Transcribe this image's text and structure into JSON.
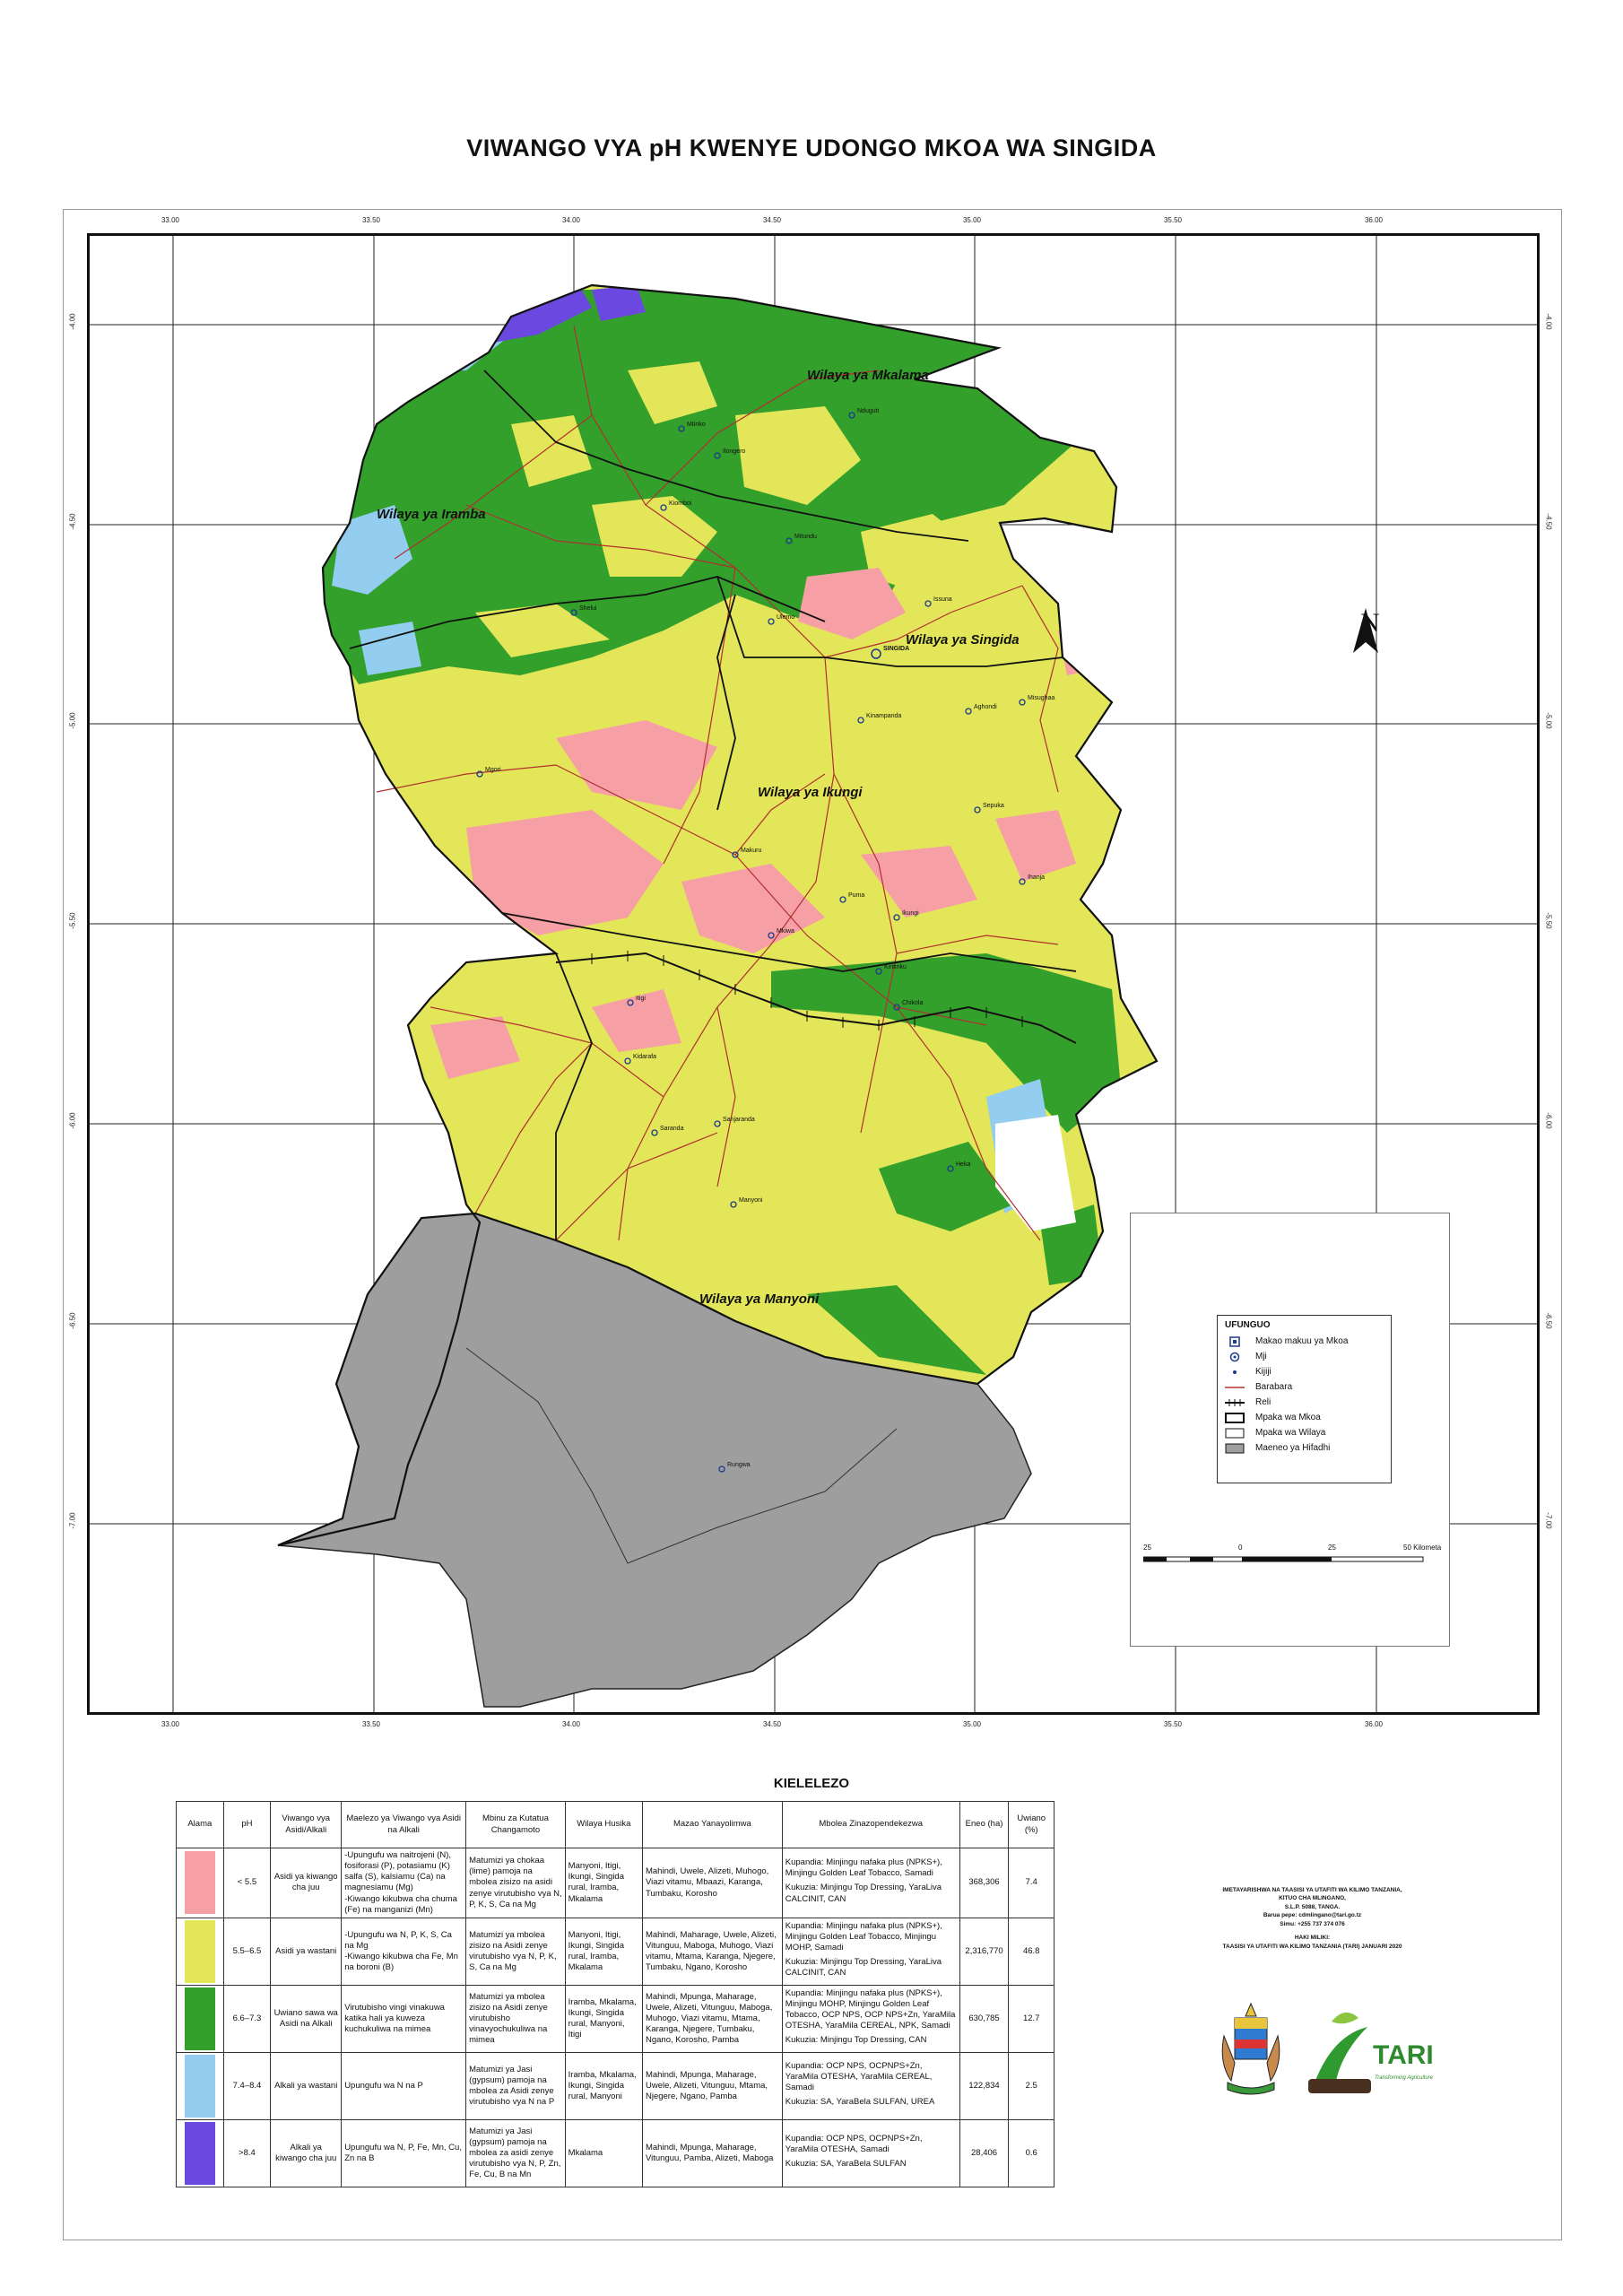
{
  "title": "VIWANGO VYA pH KWENYE UDONGO MKOA WA SINGIDA",
  "axis": {
    "top_ticks": [
      "33.00",
      "33.50",
      "34.00",
      "34.50",
      "35.00",
      "35.50",
      "36.00"
    ],
    "bottom_ticks": [
      "33.00",
      "33.50",
      "34.00",
      "34.50",
      "35.00",
      "35.50",
      "36.00"
    ],
    "left_ticks": [
      "-4.00",
      "-4.50",
      "-5.00",
      "-5.50",
      "-6.00",
      "-6.50",
      "-7.00"
    ],
    "right_ticks": [
      "-4.00",
      "-4.50",
      "-5.00",
      "-5.50",
      "-6.00",
      "-6.50",
      "-7.00"
    ]
  },
  "districts": [
    "Wilaya ya Mkalama",
    "Wilaya ya Iramba",
    "Wilaya ya Singida",
    "Wilaya ya Ikungi",
    "Wilaya ya Manyoni"
  ],
  "towns": [
    "SINGIDA",
    "Kiomboi",
    "Ilongero",
    "Mgori",
    "Puma",
    "Issuna",
    "Ikungi",
    "Itigi",
    "Manyoni",
    "Chikola",
    "Kintinku",
    "Heka",
    "Mkiwa",
    "Sepuka",
    "Mtinko",
    "Nduguti",
    "Shelui",
    "Ulemo",
    "Kinampanda",
    "Mitundu",
    "Makuru",
    "Kidarafa",
    "Rungwa",
    "Sanjaranda",
    "Saranda",
    "Aghondi",
    "Misughaa",
    "Ihanja"
  ],
  "north_label": "N",
  "legend": {
    "title": "UFUNGUO",
    "items": [
      {
        "label": "Makao makuu ya Mkoa",
        "symbol": "hq-icon"
      },
      {
        "label": "Mji",
        "symbol": "town-icon"
      },
      {
        "label": "Kijiji",
        "symbol": "village-icon"
      },
      {
        "label": "Barabara",
        "symbol": "road-line"
      },
      {
        "label": "Reli",
        "symbol": "railway-line"
      },
      {
        "label": "Mpaka wa Mkoa",
        "symbol": "region-boundary"
      },
      {
        "label": "Mpaka wa Wilaya",
        "symbol": "district-boundary"
      },
      {
        "label": "Maeneo ya Hifadhi",
        "symbol": "reserve-area"
      }
    ],
    "scale": {
      "labels": [
        "25",
        "0",
        "25",
        "50 Kilometa"
      ]
    }
  },
  "colors": {
    "very_acidic": "#f6a0a6",
    "moderately_acidic": "#e2e658",
    "neutral": "#33a02c",
    "moderately_alkaline": "#93cdf0",
    "strongly_alkaline": "#6b48e0",
    "reserve": "#9e9e9e",
    "road": "#b03030"
  },
  "key_table": {
    "title": "KIELELEZO",
    "headers": [
      "Alama",
      "pH",
      "Viwango vya Asidi/Alkali",
      "Maelezo ya Viwango vya Asidi na Alkali",
      "Mbinu za Kutatua Changamoto",
      "Wilaya Husika",
      "Mazao Yanayolimwa",
      "Mbolea Zinazopendekezwa",
      "Eneo (ha)",
      "Uwiano (%)"
    ],
    "rows": [
      {
        "color": "#f6a0a6",
        "ph": "< 5.5",
        "level": "Asidi ya kiwango cha juu",
        "description": "-Upungufu wa naitrojeni (N), fosiforasi (P), potasiamu (K) salfa (S), kalsiamu (Ca) na magnesiamu (Mg)\n-Kiwango kikubwa cha chuma (Fe) na manganizi (Mn)",
        "solution": "Matumizi ya chokaa (lime) pamoja na mbolea zisizo na asidi zenye virutubisho vya N, P, K, S, Ca na Mg",
        "districts": "Manyoni, Itigi, Ikungi, Singida rural, Iramba, Mkalama",
        "crops": "Mahindi, Uwele, Alizeti, Muhogo, Viazi vitamu, Mbaazi, Karanga, Tumbaku, Korosho",
        "planting": "Kupandia: Minjingu nafaka plus (NPKS+), Minjingu Golden Leaf Tobacco, Samadi",
        "topdressing": "Kukuzia: Minjingu Top Dressing, YaraLiva CALCINIT, CAN",
        "area": "368,306",
        "percent": "7.4"
      },
      {
        "color": "#e2e658",
        "ph": "5.5–6.5",
        "level": "Asidi ya wastani",
        "description": "-Upungufu wa N, P, K, S, Ca na Mg\n-Kiwango kikubwa cha Fe, Mn na boroni (B)",
        "solution": "Matumizi ya mbolea zisizo na Asidi zenye virutubisho vya N, P, K, S, Ca na Mg",
        "districts": "Manyoni, Itigi, Ikungi, Singida rural, Iramba, Mkalama",
        "crops": "Mahindi, Maharage, Uwele, Alizeti, Vitunguu, Maboga, Muhogo, Viazi vitamu, Mtama, Karanga, Njegere, Tumbaku, Ngano, Korosho",
        "planting": "Kupandia: Minjingu nafaka plus (NPKS+), Minjingu Golden Leaf Tobacco, Minjingu MOHP, Samadi",
        "topdressing": "Kukuzia: Minjingu Top Dressing, YaraLiva CALCINIT, CAN",
        "area": "2,316,770",
        "percent": "46.8"
      },
      {
        "color": "#33a02c",
        "ph": "6.6–7.3",
        "level": "Uwiano sawa wa Asidi na Alkali",
        "description": "Virutubisho vingi vinakuwa katika hali ya kuweza kuchukuliwa na mimea",
        "solution": "Matumizi ya mbolea zisizo na Asidi zenye virutubisho vinavyochukuliwa na mimea",
        "districts": "Iramba, Mkalama, Ikungi, Singida rural, Manyoni, Itigi",
        "crops": "Mahindi, Mpunga, Maharage, Uwele, Alizeti, Vitunguu, Maboga, Muhogo, Viazi vitamu, Mtama, Karanga, Njegere, Tumbaku, Ngano, Korosho, Pamba",
        "planting": "Kupandia: Minjingu nafaka plus (NPKS+), Minjingu MOHP, Minjingu Golden Leaf Tobacco, OCP NPS, OCP NPS+Zn, YaraMila OTESHA, YaraMila CEREAL, NPK, Samadi",
        "topdressing": "Kukuzia: Minjingu Top Dressing, CAN",
        "area": "630,785",
        "percent": "12.7"
      },
      {
        "color": "#93cdf0",
        "ph": "7.4–8.4",
        "level": "Alkali ya wastani",
        "description": "Upungufu wa N na P",
        "solution": "Matumizi ya Jasi (gypsum) pamoja na mbolea za Asidi zenye virutubisho vya N na P",
        "districts": "Iramba, Mkalama, Ikungi, Singida rural, Manyoni",
        "crops": "Mahindi, Mpunga, Maharage, Uwele, Alizeti, Vitunguu, Mtama, Njegere, Ngano, Pamba",
        "planting": "Kupandia: OCP NPS, OCPNPS+Zn, YaraMila OTESHA, YaraMila CEREAL, Samadi",
        "topdressing": "Kukuzia: SA, YaraBela SULFAN, UREA",
        "area": "122,834",
        "percent": "2.5"
      },
      {
        "color": "#6b48e0",
        "ph": ">8.4",
        "level": "Alkali ya kiwango cha juu",
        "description": "Upungufu wa N, P, Fe, Mn, Cu, Zn na B",
        "solution": "Matumizi ya Jasi (gypsum) pamoja na mbolea za asidi zenye virutubisho vya N, P, Zn, Fe, Cu, B na Mn",
        "districts": "Mkalama",
        "crops": "Mahindi, Mpunga, Maharage, Vitunguu, Pamba, Alizeti, Maboga",
        "planting": "Kupandia: OCP NPS, OCPNPS+Zn, YaraMila OTESHA, Samadi",
        "topdressing": "Kukuzia: SA, YaraBela SULFAN",
        "area": "28,406",
        "percent": "0.6"
      }
    ]
  },
  "institution": {
    "lines": [
      "IMETAYARISHWA NA TAASISI YA UTAFITI WA KILIMO TANZANIA,",
      "KITUO CHA MLINGANO,",
      "S.L.P. 5088, TANGA.",
      "Barua pepe: cdmlingano@tari.go.tz",
      "Simu: +255 737 374 076"
    ],
    "copyright_title": "HAKI MILIKI:",
    "copyright": "TAASISI YA UTAFITI WA KILIMO TANZANIA (TARI) JANUARI 2020",
    "logo_text": "TARI",
    "logo_sub": "Transforming Agriculture"
  }
}
